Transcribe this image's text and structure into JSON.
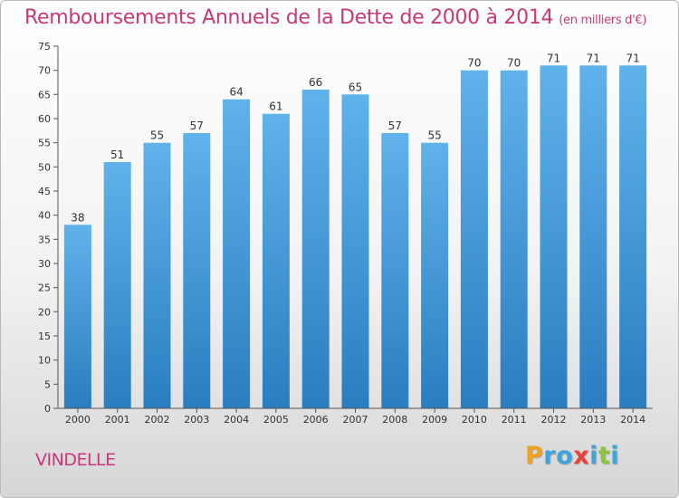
{
  "header": {
    "title": "Remboursements Annuels de la Dette de 2000 à 2014",
    "subtitle": "(en milliers d'€)"
  },
  "footer": {
    "commune": "VINDELLE",
    "logo_text": "Proxiti"
  },
  "colors": {
    "title": "#c8387a",
    "bar_top": "#5fb2ea",
    "bar_bottom": "#2a7ec0",
    "axis": "#555555",
    "label": "#333333"
  },
  "chart_data": {
    "type": "bar",
    "title": "Remboursements Annuels de la Dette de 2000 à 2014",
    "subtitle": "(en milliers d'€)",
    "categories": [
      "2000",
      "2001",
      "2002",
      "2003",
      "2004",
      "2005",
      "2006",
      "2007",
      "2008",
      "2009",
      "2010",
      "2011",
      "2012",
      "2013",
      "2014"
    ],
    "values": [
      38,
      51,
      55,
      57,
      64,
      61,
      66,
      65,
      57,
      55,
      70,
      70,
      71,
      71,
      71
    ],
    "ylim": [
      0,
      75
    ],
    "yticks": [
      0,
      5,
      10,
      15,
      20,
      25,
      30,
      35,
      40,
      45,
      50,
      55,
      60,
      65,
      70,
      75
    ],
    "xlabel": "",
    "ylabel": "",
    "grid": false,
    "data_labels": true
  }
}
